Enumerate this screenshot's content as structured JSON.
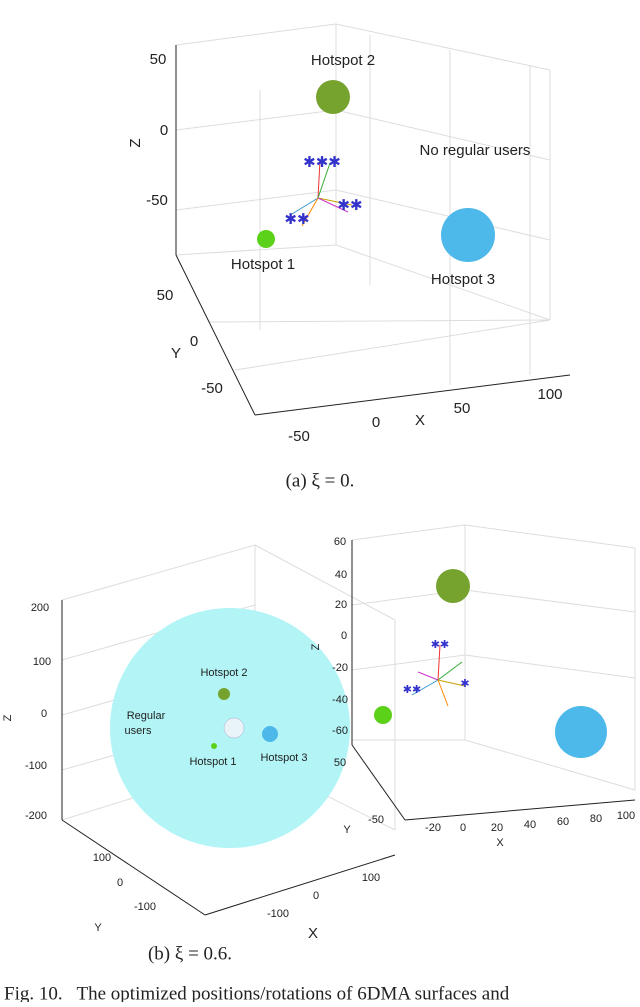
{
  "panel_a": {
    "z_label": "Z",
    "y_label": "Y",
    "x_label": "X",
    "z_ticks": [
      50,
      0,
      -50
    ],
    "y_ticks": [
      50,
      0,
      -50
    ],
    "x_ticks": [
      -50,
      0,
      50,
      100
    ],
    "annotations": [
      "Hotspot 2",
      "No regular users",
      "Hotspot 1",
      "Hotspot 3"
    ],
    "caption": "(a) ξ = 0."
  },
  "panel_b": {
    "left": {
      "z_label": "Z",
      "y_label": "Y",
      "x_label": "X",
      "z_ticks": [
        200,
        100,
        0,
        -100,
        -200
      ],
      "y_ticks": [
        100,
        0,
        -100
      ],
      "x_ticks": [
        -100,
        0,
        100
      ],
      "annotations": [
        "Hotspot 2",
        "Regular",
        "users",
        "Hotspot 1",
        "Hotspot 3"
      ]
    },
    "right": {
      "z_label": "Z",
      "y_label": "Y",
      "x_label": "X",
      "z_ticks": [
        60,
        40,
        20,
        0,
        -20,
        -40,
        -60
      ],
      "y_ticks": [
        50,
        -50
      ],
      "x_ticks": [
        -20,
        0,
        20,
        40,
        60,
        80,
        100
      ]
    },
    "caption": "(b) ξ = 0.6."
  },
  "figure_caption": "Fig. 10.   The optimized positions/rotations of 6DMA surfaces and"
}
